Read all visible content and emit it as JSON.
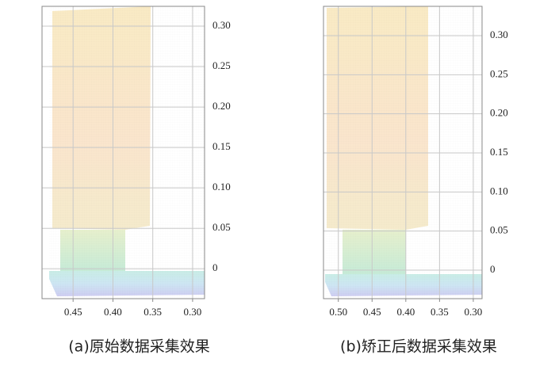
{
  "chart_data": [
    {
      "type": "scatter",
      "caption": "(a)原始数据采集效果",
      "xlim": [
        0.489,
        0.285
      ],
      "xticks": [
        {
          "value": 0.45,
          "label": "0.45"
        },
        {
          "value": 0.4,
          "label": "0.40"
        },
        {
          "value": 0.35,
          "label": "0.35"
        },
        {
          "value": 0.3,
          "label": "0.30"
        }
      ],
      "ylim": [
        -0.037,
        0.3245
      ],
      "yticks": [
        0,
        {
          "value": 0.05,
          "label": "0.05"
        },
        {
          "value": 0.1,
          "label": "0.10"
        },
        {
          "value": 0.15,
          "label": "0.15"
        },
        {
          "value": 0.2,
          "label": "0.20"
        },
        {
          "value": 0.25,
          "label": "0.25"
        },
        {
          "value": 0.3,
          "label": "0.30"
        }
      ],
      "grid": true
    },
    {
      "type": "scatter",
      "caption": "(b)矫正后数据采集效果",
      "xlim": [
        0.522,
        0.287
      ],
      "xticks": [
        {
          "value": 0.5,
          "label": "0.50"
        },
        {
          "value": 0.45,
          "label": "0.45"
        },
        {
          "value": 0.4,
          "label": "0.40"
        },
        {
          "value": 0.35,
          "label": "0.35"
        },
        {
          "value": 0.3,
          "label": "0.30"
        }
      ],
      "ylim": [
        -0.0365,
        0.3375
      ],
      "yticks": [
        0,
        {
          "value": 0.05,
          "label": "0.05"
        },
        {
          "value": 0.1,
          "label": "0.10"
        },
        {
          "value": 0.15,
          "label": "0.15"
        },
        {
          "value": 0.2,
          "label": "0.20"
        },
        {
          "value": 0.25,
          "label": "0.25"
        },
        {
          "value": 0.3,
          "label": "0.30"
        }
      ],
      "grid": true
    }
  ]
}
